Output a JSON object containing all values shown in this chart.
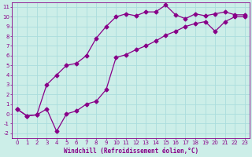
{
  "xlabel": "Windchill (Refroidissement éolien,°C)",
  "xlim": [
    -0.5,
    23.5
  ],
  "ylim": [
    -2.5,
    11.5
  ],
  "xticks": [
    0,
    1,
    2,
    3,
    4,
    5,
    6,
    7,
    8,
    9,
    10,
    11,
    12,
    13,
    14,
    15,
    16,
    17,
    18,
    19,
    20,
    21,
    22,
    23
  ],
  "yticks": [
    -2,
    -1,
    0,
    1,
    2,
    3,
    4,
    5,
    6,
    7,
    8,
    9,
    10,
    11
  ],
  "background_color": "#cceee8",
  "line_color": "#880088",
  "grid_color": "#aadddd",
  "line1_x": [
    0,
    1,
    2,
    3,
    4,
    5,
    6,
    7,
    8,
    9,
    10,
    11,
    12,
    13,
    14,
    15,
    16,
    17,
    18,
    19,
    20,
    21,
    22,
    23
  ],
  "line1_y": [
    0.5,
    -0.2,
    -0.1,
    0.5,
    -1.8,
    0.0,
    0.3,
    1.0,
    1.3,
    2.5,
    5.8,
    6.1,
    6.6,
    7.0,
    7.5,
    8.1,
    8.5,
    9.0,
    9.3,
    9.5,
    8.5,
    9.5,
    10.0,
    10.0
  ],
  "line2_x": [
    0,
    1,
    2,
    3,
    4,
    5,
    6,
    7,
    8,
    9,
    10,
    11,
    12,
    13,
    14,
    15,
    16,
    17,
    18,
    19,
    20,
    21,
    22,
    23
  ],
  "line2_y": [
    0.5,
    -0.2,
    -0.1,
    3.0,
    4.0,
    5.0,
    5.2,
    6.0,
    7.8,
    9.0,
    10.0,
    10.3,
    10.1,
    10.5,
    10.5,
    11.2,
    10.2,
    9.8,
    10.3,
    10.1,
    10.3,
    10.5,
    10.2,
    10.2
  ],
  "marker": "D",
  "markersize": 2.5,
  "linewidth": 0.9,
  "tick_fontsize": 5.0,
  "xlabel_fontsize": 5.5
}
